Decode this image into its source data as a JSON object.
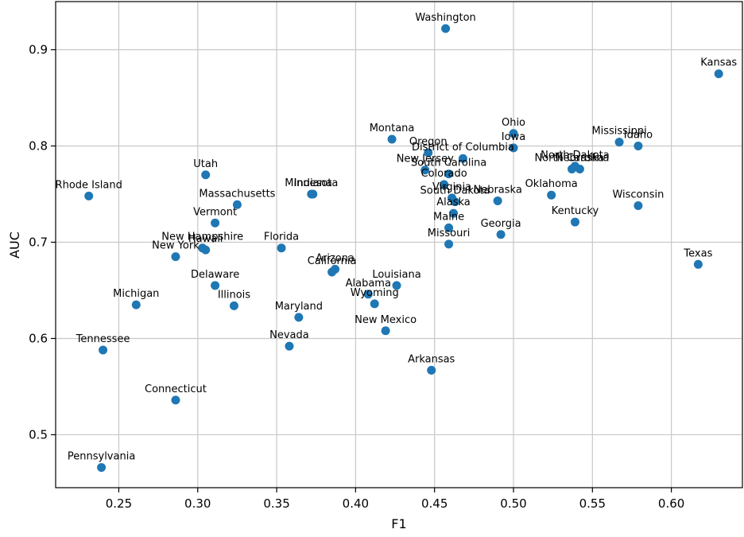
{
  "chart_data": {
    "type": "scatter",
    "title": "",
    "xlabel": "F1",
    "ylabel": "AUC",
    "xlim": [
      0.21,
      0.645
    ],
    "ylim": [
      0.445,
      0.95
    ],
    "xticks": [
      0.25,
      0.3,
      0.35,
      0.4,
      0.45,
      0.5,
      0.55,
      0.6
    ],
    "xtick_labels": [
      "0.25",
      "0.30",
      "0.35",
      "0.40",
      "0.45",
      "0.50",
      "0.55",
      "0.60"
    ],
    "yticks": [
      0.5,
      0.6,
      0.7,
      0.8,
      0.9
    ],
    "ytick_labels": [
      "0.5",
      "0.6",
      "0.7",
      "0.8",
      "0.9"
    ],
    "grid": true,
    "point_color": "#1f77b4",
    "points": [
      {
        "label": "Washington",
        "x": 0.457,
        "y": 0.922
      },
      {
        "label": "Kansas",
        "x": 0.63,
        "y": 0.875
      },
      {
        "label": "Ohio",
        "x": 0.5,
        "y": 0.813
      },
      {
        "label": "Iowa",
        "x": 0.5,
        "y": 0.798
      },
      {
        "label": "Mississippi",
        "x": 0.567,
        "y": 0.804
      },
      {
        "label": "Idaho",
        "x": 0.579,
        "y": 0.8
      },
      {
        "label": "Montana",
        "x": 0.423,
        "y": 0.807
      },
      {
        "label": "Oregon",
        "x": 0.446,
        "y": 0.793
      },
      {
        "label": "District of Columbia",
        "x": 0.468,
        "y": 0.787
      },
      {
        "label": "North Dakota",
        "x": 0.539,
        "y": 0.779
      },
      {
        "label": "New Mexico",
        "x": 0.419,
        "y": 0.608
      },
      {
        "label": "Nebraska",
        "x": 0.542,
        "y": 0.776
      },
      {
        "label": "North Carolina",
        "x": 0.537,
        "y": 0.776
      },
      {
        "label": "New Jersey",
        "x": 0.444,
        "y": 0.775
      },
      {
        "label": "South Carolina",
        "x": 0.459,
        "y": 0.771
      },
      {
        "label": "Colorado",
        "x": 0.456,
        "y": 0.76
      },
      {
        "label": "Utah",
        "x": 0.305,
        "y": 0.77
      },
      {
        "label": "Rhode Island",
        "x": 0.231,
        "y": 0.748
      },
      {
        "label": "Minnesota",
        "x": 0.372,
        "y": 0.75
      },
      {
        "label": "Indiana",
        "x": 0.373,
        "y": 0.75
      },
      {
        "label": "Virginia",
        "x": 0.461,
        "y": 0.746
      },
      {
        "label": "South Dakota",
        "x": 0.463,
        "y": 0.742
      },
      {
        "label": "Nebraska",
        "x": 0.49,
        "y": 0.743
      },
      {
        "label": "Oklahoma",
        "x": 0.524,
        "y": 0.749
      },
      {
        "label": "Wisconsin",
        "x": 0.579,
        "y": 0.738
      },
      {
        "label": "Massachusetts",
        "x": 0.325,
        "y": 0.739
      },
      {
        "label": "Alaska",
        "x": 0.462,
        "y": 0.73
      },
      {
        "label": "Kentucky",
        "x": 0.539,
        "y": 0.721
      },
      {
        "label": "Vermont",
        "x": 0.311,
        "y": 0.72
      },
      {
        "label": "Maine",
        "x": 0.459,
        "y": 0.715
      },
      {
        "label": "Georgia",
        "x": 0.492,
        "y": 0.708
      },
      {
        "label": "Missouri",
        "x": 0.459,
        "y": 0.698
      },
      {
        "label": "Florida",
        "x": 0.353,
        "y": 0.694
      },
      {
        "label": "New Hampshire",
        "x": 0.303,
        "y": 0.694
      },
      {
        "label": "Hawaii",
        "x": 0.305,
        "y": 0.692
      },
      {
        "label": "New York",
        "x": 0.286,
        "y": 0.685
      },
      {
        "label": "Texas",
        "x": 0.617,
        "y": 0.677
      },
      {
        "label": "Arizona",
        "x": 0.387,
        "y": 0.672
      },
      {
        "label": "California",
        "x": 0.385,
        "y": 0.669
      },
      {
        "label": "Delaware",
        "x": 0.311,
        "y": 0.655
      },
      {
        "label": "Louisiana",
        "x": 0.426,
        "y": 0.655
      },
      {
        "label": "Alabama",
        "x": 0.408,
        "y": 0.646
      },
      {
        "label": "Wyoming",
        "x": 0.412,
        "y": 0.636
      },
      {
        "label": "Michigan",
        "x": 0.261,
        "y": 0.635
      },
      {
        "label": "Illinois",
        "x": 0.323,
        "y": 0.634
      },
      {
        "label": "Maryland",
        "x": 0.364,
        "y": 0.622
      },
      {
        "label": "Nevada",
        "x": 0.358,
        "y": 0.592
      },
      {
        "label": "Tennessee",
        "x": 0.24,
        "y": 0.588
      },
      {
        "label": "Arkansas",
        "x": 0.448,
        "y": 0.567
      },
      {
        "label": "Connecticut",
        "x": 0.286,
        "y": 0.536
      },
      {
        "label": "Pennsylvania",
        "x": 0.239,
        "y": 0.466
      }
    ]
  }
}
